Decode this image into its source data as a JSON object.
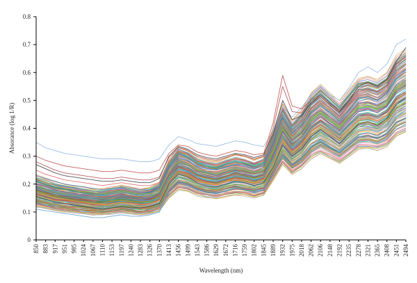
{
  "chart_data": {
    "type": "line",
    "title": "",
    "xlabel": "Wavelength (nm)",
    "ylabel": "Absorance (log 1/R)",
    "ylim": [
      0,
      0.8
    ],
    "yticks": [
      0,
      0.1,
      0.2,
      0.3,
      0.4,
      0.5,
      0.6,
      0.7,
      0.8
    ],
    "ytick_labels": [
      "0",
      "0.1",
      "0.2",
      "0.3",
      "0.4",
      "0.5",
      "0.6",
      "0.7",
      "0.8"
    ],
    "x": [
      850,
      883,
      917,
      951,
      985,
      1024,
      1067,
      1110,
      1153,
      1197,
      1240,
      1283,
      1326,
      1370,
      1413,
      1456,
      1499,
      1543,
      1586,
      1629,
      1672,
      1716,
      1759,
      1802,
      1845,
      1889,
      1932,
      1975,
      2018,
      2062,
      2106,
      2148,
      2192,
      2235,
      2278,
      2321,
      2365,
      2408,
      2451,
      2494
    ],
    "xtick_labels": [
      "850",
      "883",
      "917",
      "951",
      "985",
      "1024",
      "1067",
      "1110",
      "1153",
      "1197",
      "1240",
      "1283",
      "1326",
      "1370",
      "1413",
      "1456",
      "1499",
      "1543",
      "1586",
      "1629",
      "1672",
      "1716",
      "1759",
      "1802",
      "1845",
      "1889",
      "1932",
      "1975",
      "2018",
      "2062",
      "2106",
      "2148",
      "2192",
      "2235",
      "2278",
      "2321",
      "2365",
      "2408",
      "2451",
      "2494"
    ],
    "grid": false,
    "legend": "none",
    "series_profile": [
      0.18,
      0.17,
      0.16,
      0.155,
      0.15,
      0.145,
      0.14,
      0.14,
      0.145,
      0.15,
      0.145,
      0.14,
      0.145,
      0.16,
      0.225,
      0.265,
      0.255,
      0.235,
      0.225,
      0.22,
      0.23,
      0.24,
      0.235,
      0.225,
      0.235,
      0.31,
      0.39,
      0.34,
      0.37,
      0.42,
      0.445,
      0.42,
      0.395,
      0.43,
      0.465,
      0.47,
      0.46,
      0.48,
      0.53,
      0.55
    ],
    "series": [
      {
        "values": [
          0.35,
          0.33,
          0.32,
          0.31,
          0.305,
          0.3,
          0.295,
          0.29,
          0.29,
          0.29,
          0.285,
          0.28,
          0.28,
          0.29,
          0.34,
          0.37,
          0.36,
          0.345,
          0.34,
          0.335,
          0.345,
          0.355,
          0.35,
          0.34,
          0.335,
          0.39,
          0.475,
          0.44,
          0.475,
          0.52,
          0.55,
          0.52,
          0.5,
          0.545,
          0.6,
          0.62,
          0.6,
          0.63,
          0.7,
          0.72
        ]
      },
      {
        "values": [
          0.3,
          0.285,
          0.275,
          0.265,
          0.26,
          0.255,
          0.25,
          0.245,
          0.245,
          0.25,
          0.245,
          0.24,
          0.24,
          0.25,
          0.31,
          0.34,
          0.335,
          0.315,
          0.305,
          0.3,
          0.31,
          0.32,
          0.315,
          0.305,
          0.31,
          0.42,
          0.59,
          0.48,
          0.47,
          0.5,
          0.52,
          0.49,
          0.465,
          0.5,
          0.54,
          0.555,
          0.545,
          0.565,
          0.63,
          0.66
        ]
      },
      {
        "values": [
          0.28,
          0.265,
          0.25,
          0.24,
          0.235,
          0.23,
          0.225,
          0.22,
          0.22,
          0.225,
          0.22,
          0.215,
          0.215,
          0.225,
          0.295,
          0.33,
          0.32,
          0.3,
          0.29,
          0.285,
          0.295,
          0.305,
          0.3,
          0.29,
          0.3,
          0.4,
          0.55,
          0.46,
          0.455,
          0.49,
          0.515,
          0.485,
          0.455,
          0.49,
          0.53,
          0.54,
          0.53,
          0.555,
          0.62,
          0.65
        ]
      },
      {
        "values": [
          0.27,
          0.255,
          0.24,
          0.23,
          0.225,
          0.22,
          0.215,
          0.21,
          0.21,
          0.215,
          0.21,
          0.205,
          0.205,
          0.22,
          0.3,
          0.335,
          0.325,
          0.305,
          0.295,
          0.29,
          0.3,
          0.31,
          0.305,
          0.295,
          0.305,
          0.38,
          0.5,
          0.43,
          0.445,
          0.49,
          0.52,
          0.49,
          0.46,
          0.5,
          0.55,
          0.565,
          0.55,
          0.575,
          0.64,
          0.69
        ]
      },
      {
        "values": [
          0.25,
          0.235,
          0.225,
          0.215,
          0.21,
          0.205,
          0.2,
          0.195,
          0.2,
          0.205,
          0.2,
          0.195,
          0.195,
          0.205,
          0.28,
          0.315,
          0.305,
          0.285,
          0.275,
          0.27,
          0.28,
          0.29,
          0.285,
          0.275,
          0.285,
          0.36,
          0.47,
          0.41,
          0.43,
          0.475,
          0.5,
          0.475,
          0.445,
          0.485,
          0.525,
          0.535,
          0.52,
          0.545,
          0.6,
          0.63
        ]
      },
      {
        "values": [
          0.23,
          0.22,
          0.21,
          0.2,
          0.195,
          0.19,
          0.185,
          0.18,
          0.185,
          0.19,
          0.185,
          0.18,
          0.18,
          0.19,
          0.26,
          0.295,
          0.285,
          0.265,
          0.255,
          0.25,
          0.26,
          0.27,
          0.265,
          0.255,
          0.265,
          0.34,
          0.44,
          0.385,
          0.41,
          0.455,
          0.48,
          0.455,
          0.425,
          0.465,
          0.505,
          0.515,
          0.5,
          0.525,
          0.58,
          0.61
        ]
      },
      {
        "values": [
          0.22,
          0.205,
          0.195,
          0.185,
          0.18,
          0.175,
          0.17,
          0.165,
          0.17,
          0.175,
          0.17,
          0.165,
          0.165,
          0.175,
          0.245,
          0.28,
          0.27,
          0.25,
          0.24,
          0.235,
          0.245,
          0.255,
          0.25,
          0.24,
          0.25,
          0.32,
          0.41,
          0.365,
          0.39,
          0.435,
          0.46,
          0.435,
          0.405,
          0.445,
          0.48,
          0.49,
          0.475,
          0.5,
          0.55,
          0.58
        ]
      },
      {
        "values": [
          0.2,
          0.19,
          0.18,
          0.17,
          0.165,
          0.16,
          0.155,
          0.15,
          0.155,
          0.16,
          0.155,
          0.15,
          0.15,
          0.16,
          0.23,
          0.265,
          0.255,
          0.235,
          0.225,
          0.22,
          0.23,
          0.24,
          0.235,
          0.225,
          0.235,
          0.3,
          0.385,
          0.345,
          0.37,
          0.415,
          0.44,
          0.415,
          0.39,
          0.425,
          0.46,
          0.47,
          0.455,
          0.48,
          0.53,
          0.555
        ]
      },
      {
        "values": [
          0.185,
          0.175,
          0.165,
          0.16,
          0.155,
          0.15,
          0.145,
          0.14,
          0.145,
          0.15,
          0.145,
          0.14,
          0.14,
          0.15,
          0.22,
          0.255,
          0.245,
          0.225,
          0.215,
          0.21,
          0.22,
          0.23,
          0.225,
          0.215,
          0.225,
          0.29,
          0.37,
          0.33,
          0.355,
          0.4,
          0.425,
          0.4,
          0.375,
          0.41,
          0.445,
          0.455,
          0.44,
          0.465,
          0.515,
          0.54
        ]
      },
      {
        "values": [
          0.17,
          0.16,
          0.15,
          0.145,
          0.14,
          0.135,
          0.13,
          0.125,
          0.13,
          0.135,
          0.13,
          0.125,
          0.13,
          0.14,
          0.21,
          0.245,
          0.235,
          0.215,
          0.205,
          0.2,
          0.21,
          0.22,
          0.215,
          0.205,
          0.215,
          0.275,
          0.355,
          0.315,
          0.34,
          0.385,
          0.41,
          0.385,
          0.36,
          0.395,
          0.43,
          0.44,
          0.425,
          0.45,
          0.5,
          0.525
        ]
      },
      {
        "values": [
          0.155,
          0.145,
          0.135,
          0.13,
          0.125,
          0.12,
          0.115,
          0.11,
          0.115,
          0.12,
          0.115,
          0.115,
          0.12,
          0.13,
          0.2,
          0.235,
          0.225,
          0.205,
          0.195,
          0.19,
          0.2,
          0.21,
          0.205,
          0.195,
          0.205,
          0.26,
          0.34,
          0.3,
          0.325,
          0.37,
          0.395,
          0.37,
          0.345,
          0.38,
          0.415,
          0.425,
          0.41,
          0.435,
          0.485,
          0.51
        ]
      },
      {
        "values": [
          0.14,
          0.13,
          0.12,
          0.115,
          0.11,
          0.105,
          0.1,
          0.1,
          0.105,
          0.11,
          0.105,
          0.1,
          0.11,
          0.12,
          0.19,
          0.225,
          0.215,
          0.195,
          0.185,
          0.18,
          0.19,
          0.2,
          0.195,
          0.185,
          0.195,
          0.25,
          0.325,
          0.29,
          0.315,
          0.36,
          0.385,
          0.36,
          0.335,
          0.37,
          0.405,
          0.415,
          0.4,
          0.425,
          0.47,
          0.495
        ]
      },
      {
        "values": [
          0.12,
          0.115,
          0.11,
          0.105,
          0.1,
          0.095,
          0.09,
          0.09,
          0.095,
          0.1,
          0.095,
          0.095,
          0.1,
          0.11,
          0.18,
          0.215,
          0.205,
          0.19,
          0.18,
          0.175,
          0.185,
          0.195,
          0.19,
          0.18,
          0.19,
          0.24,
          0.31,
          0.28,
          0.305,
          0.345,
          0.37,
          0.345,
          0.325,
          0.355,
          0.39,
          0.4,
          0.385,
          0.41,
          0.455,
          0.48
        ]
      },
      {
        "values": [
          0.11,
          0.105,
          0.1,
          0.095,
          0.09,
          0.085,
          0.08,
          0.08,
          0.085,
          0.09,
          0.085,
          0.085,
          0.09,
          0.1,
          0.17,
          0.205,
          0.195,
          0.18,
          0.17,
          0.165,
          0.175,
          0.185,
          0.18,
          0.17,
          0.18,
          0.23,
          0.3,
          0.27,
          0.29,
          0.335,
          0.36,
          0.335,
          0.315,
          0.345,
          0.375,
          0.385,
          0.37,
          0.395,
          0.44,
          0.465
        ]
      }
    ],
    "series_colors": [
      "#8fb7e8",
      "#c0504d",
      "#b05050",
      "#404040",
      "#e06666",
      "#4f81bd",
      "#9bbb59",
      "#8064a2",
      "#4bacc6",
      "#f79646",
      "#2f4f4f",
      "#70ad47",
      "#a5a5a5",
      "#5b9bd5"
    ]
  }
}
